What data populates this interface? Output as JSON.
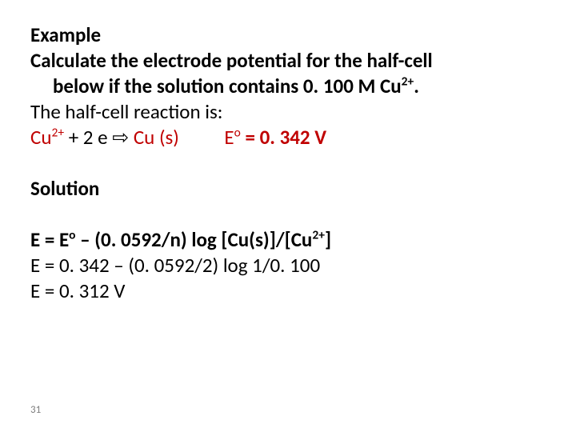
{
  "heading": "Example",
  "problem": {
    "line1a": "Calculate the electrode potential for the half-cell",
    "line1b_pre": "below if the solution contains 0. 100 M Cu",
    "line1b_sup": "2+",
    "line1b_post": "."
  },
  "halfcell_intro": "The half-cell reaction is:",
  "halfcell": {
    "species1_pre": "Cu",
    "species1_sup": "2+",
    "plus_e": " + 2 e ",
    "arrow": "⇨",
    "species2": " Cu (s)",
    "gap": "          ",
    "e_label_pre": "E",
    "e_label_sup": "o",
    "e_label_post": " = 0. 342 V"
  },
  "solution_heading": "Solution",
  "eqs": {
    "l1_pre": "E = E",
    "l1_sup": "o",
    "l1_mid": " – (0. 0592/n) log [Cu(s)]/[Cu",
    "l1_sup2": "2+",
    "l1_post": "]",
    "l2": "E = 0. 342 – (0. 0592/2) log 1/0. 100",
    "l3": "E = 0. 312 V"
  },
  "page_number": "31",
  "colors": {
    "text": "#000000",
    "red": "#c00000",
    "pagenum": "#7f7f7f",
    "background": "#ffffff"
  },
  "fontsize_body": 25,
  "fontsize_pagenum": 13
}
